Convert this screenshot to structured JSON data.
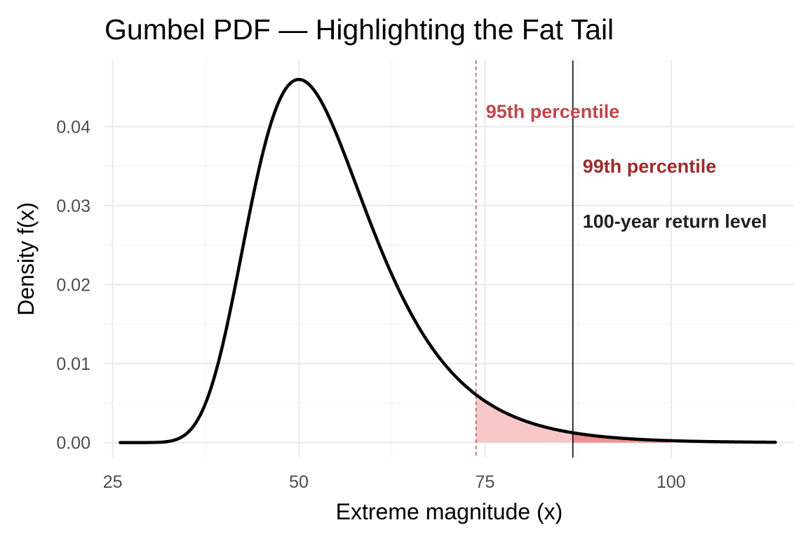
{
  "chart_data": {
    "type": "area",
    "title": "Gumbel PDF — Highlighting the Fat Tail",
    "xlabel": "Extreme magnitude (x)",
    "ylabel": "Density  f(x)",
    "xlim": [
      23.9,
      116.5
    ],
    "ylim": [
      -0.0019,
      0.0484
    ],
    "x_ticks": [
      25,
      50,
      75,
      100
    ],
    "x_tick_labels": [
      "25",
      "50",
      "75",
      "100"
    ],
    "y_ticks": [
      0.0,
      0.01,
      0.02,
      0.03,
      0.04
    ],
    "y_tick_labels": [
      "0.00",
      "0.01",
      "0.02",
      "0.03",
      "0.04"
    ],
    "grid": true,
    "series": [
      {
        "curve": "gumbel_pdf",
        "location": 50,
        "scale": 8,
        "x_range": [
          26,
          114
        ],
        "color": "#000000"
      }
    ],
    "shaded_tail_regions": [
      {
        "from": 73.8,
        "to": 100.0,
        "color": "#f8c8c8"
      },
      {
        "from": 86.8,
        "to": 100.0,
        "color": "#f08f8f"
      }
    ],
    "reference_lines": [
      {
        "x": 73.8,
        "style": "dashed",
        "color": "#b0484a",
        "label": "95th percentile",
        "label_color": "#c0474c",
        "label_y": 0.0411
      },
      {
        "x": 86.8,
        "style": "solid",
        "color": "#000000",
        "label": "99th percentile",
        "label_color": "#9c2b2b",
        "label_y": 0.0342
      },
      {
        "x": 86.8,
        "style": "none",
        "color": "#000000",
        "label": "100-year return level",
        "label_color": "#222222",
        "label_y": 0.0272
      }
    ]
  }
}
